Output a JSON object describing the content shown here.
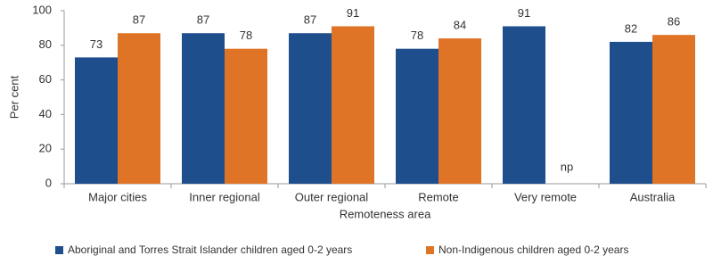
{
  "chart_data": {
    "type": "bar",
    "x_label": "Remoteness area",
    "y_label": "Per cent",
    "categories": [
      "Major cities",
      "Inner regional",
      "Outer regional",
      "Remote",
      "Very remote",
      "Australia"
    ],
    "series": [
      {
        "name": "Aboriginal and Torres Strait Islander children aged 0-2 years",
        "color": "#1f4e8c",
        "values": [
          73,
          87,
          87,
          78,
          91,
          82
        ]
      },
      {
        "name": "Non-Indigenous children aged 0-2 years",
        "color": "#e07426",
        "values": [
          87,
          78,
          91,
          84,
          null,
          86
        ],
        "value_labels": [
          "87",
          "78",
          "91",
          "84",
          "np",
          "86"
        ]
      }
    ],
    "ylim": [
      0,
      100
    ],
    "yticks": [
      0,
      20,
      40,
      60,
      80,
      100
    ],
    "grid": false
  }
}
